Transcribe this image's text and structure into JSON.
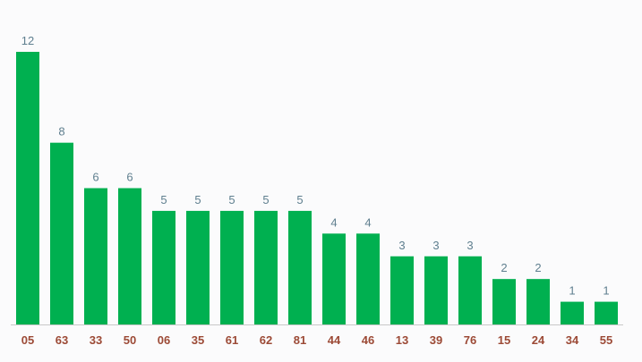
{
  "chart_data": {
    "type": "bar",
    "categories": [
      "05",
      "63",
      "33",
      "50",
      "06",
      "35",
      "61",
      "62",
      "81",
      "44",
      "46",
      "13",
      "39",
      "76",
      "15",
      "24",
      "34",
      "55"
    ],
    "values": [
      12,
      8,
      6,
      6,
      5,
      5,
      5,
      5,
      5,
      4,
      4,
      3,
      3,
      3,
      2,
      2,
      1,
      1
    ],
    "title": "",
    "xlabel": "",
    "ylabel": "",
    "ylim": [
      0,
      12
    ],
    "grid": false,
    "data_labels": true,
    "colors": {
      "bar": "#00b050",
      "axis": "#c8c8c8",
      "value_label": "#5f7f8f",
      "tick_label": "#9c4a36",
      "background": "#fbfbfc"
    }
  }
}
